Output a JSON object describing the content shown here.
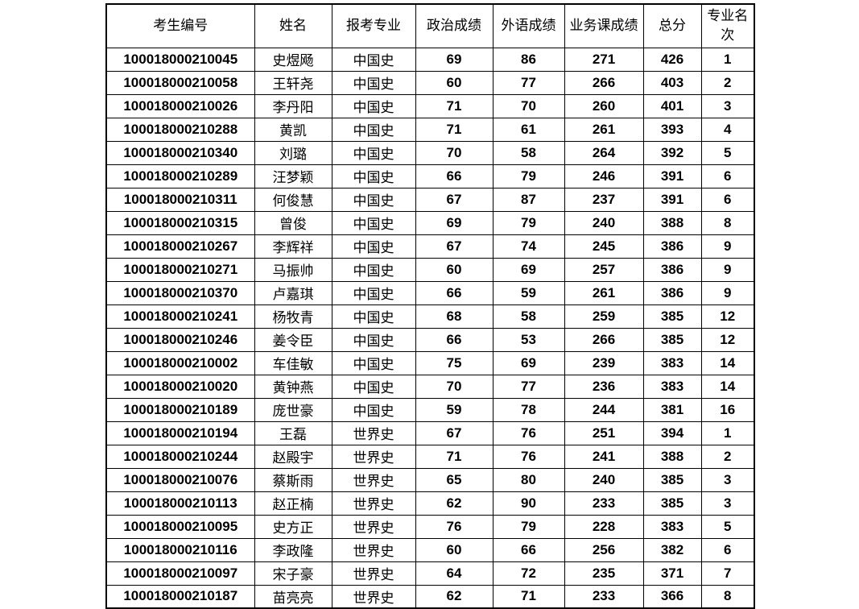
{
  "page": {
    "background_color": "#ffffff",
    "border_color": "#000000",
    "text_color": "#000000"
  },
  "table": {
    "columns": [
      {
        "label": "考生编号"
      },
      {
        "label": "姓名"
      },
      {
        "label": "报考专业"
      },
      {
        "label": "政治成绩"
      },
      {
        "label": "外语成绩"
      },
      {
        "label": "业务课成绩"
      },
      {
        "label": "总分"
      },
      {
        "label": "专业名次"
      }
    ],
    "rows": [
      [
        "100018000210045",
        "史煜飏",
        "中国史",
        "69",
        "86",
        "271",
        "426",
        "1"
      ],
      [
        "100018000210058",
        "王轩尧",
        "中国史",
        "60",
        "77",
        "266",
        "403",
        "2"
      ],
      [
        "100018000210026",
        "李丹阳",
        "中国史",
        "71",
        "70",
        "260",
        "401",
        "3"
      ],
      [
        "100018000210288",
        "黄凯",
        "中国史",
        "71",
        "61",
        "261",
        "393",
        "4"
      ],
      [
        "100018000210340",
        "刘璐",
        "中国史",
        "70",
        "58",
        "264",
        "392",
        "5"
      ],
      [
        "100018000210289",
        "汪梦颖",
        "中国史",
        "66",
        "79",
        "246",
        "391",
        "6"
      ],
      [
        "100018000210311",
        "何俊慧",
        "中国史",
        "67",
        "87",
        "237",
        "391",
        "6"
      ],
      [
        "100018000210315",
        "曾俊",
        "中国史",
        "69",
        "79",
        "240",
        "388",
        "8"
      ],
      [
        "100018000210267",
        "李辉祥",
        "中国史",
        "67",
        "74",
        "245",
        "386",
        "9"
      ],
      [
        "100018000210271",
        "马振帅",
        "中国史",
        "60",
        "69",
        "257",
        "386",
        "9"
      ],
      [
        "100018000210370",
        "卢嘉琪",
        "中国史",
        "66",
        "59",
        "261",
        "386",
        "9"
      ],
      [
        "100018000210241",
        "杨牧青",
        "中国史",
        "68",
        "58",
        "259",
        "385",
        "12"
      ],
      [
        "100018000210246",
        "姜令臣",
        "中国史",
        "66",
        "53",
        "266",
        "385",
        "12"
      ],
      [
        "100018000210002",
        "车佳敏",
        "中国史",
        "75",
        "69",
        "239",
        "383",
        "14"
      ],
      [
        "100018000210020",
        "黄钟燕",
        "中国史",
        "70",
        "77",
        "236",
        "383",
        "14"
      ],
      [
        "100018000210189",
        "庞世豪",
        "中国史",
        "59",
        "78",
        "244",
        "381",
        "16"
      ],
      [
        "100018000210194",
        "王磊",
        "世界史",
        "67",
        "76",
        "251",
        "394",
        "1"
      ],
      [
        "100018000210244",
        "赵殿宇",
        "世界史",
        "71",
        "76",
        "241",
        "388",
        "2"
      ],
      [
        "100018000210076",
        "蔡斯雨",
        "世界史",
        "65",
        "80",
        "240",
        "385",
        "3"
      ],
      [
        "100018000210113",
        "赵正楠",
        "世界史",
        "62",
        "90",
        "233",
        "385",
        "3"
      ],
      [
        "100018000210095",
        "史方正",
        "世界史",
        "76",
        "79",
        "228",
        "383",
        "5"
      ],
      [
        "100018000210116",
        "李政隆",
        "世界史",
        "60",
        "66",
        "256",
        "382",
        "6"
      ],
      [
        "100018000210097",
        "宋子豪",
        "世界史",
        "64",
        "72",
        "235",
        "371",
        "7"
      ],
      [
        "100018000210187",
        "苗亮亮",
        "世界史",
        "62",
        "71",
        "233",
        "366",
        "8"
      ]
    ]
  }
}
